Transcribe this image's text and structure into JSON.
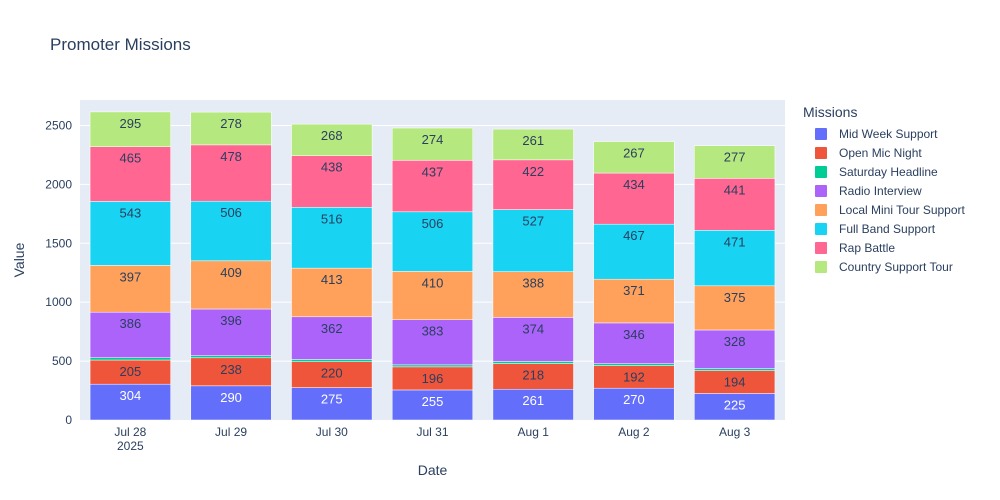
{
  "chart_data": {
    "type": "bar",
    "stacked": true,
    "title": "Promoter Missions",
    "xlabel": "Date",
    "ylabel": "Value",
    "categories": [
      "Jul 28",
      "Jul 29",
      "Jul 30",
      "Jul 31",
      "Aug 1",
      "Aug 2",
      "Aug 3"
    ],
    "x_year_label": "2025",
    "ylim": [
      0,
      2716
    ],
    "yticks": [
      0,
      500,
      1000,
      1500,
      2000,
      2500
    ],
    "grid": true,
    "legend_title": "Missions",
    "legend_position": "right",
    "series": [
      {
        "name": "Mid Week Support",
        "color": "#636efa",
        "label_color": "#ffffff",
        "values": [
          304,
          290,
          275,
          255,
          261,
          270,
          225
        ]
      },
      {
        "name": "Open Mic Night",
        "color": "#ef553b",
        "label_color": "#2a3f5f",
        "values": [
          205,
          238,
          220,
          196,
          218,
          192,
          194
        ]
      },
      {
        "name": "Saturday Headline",
        "color": "#00cc96",
        "label_color": "#2a3f5f",
        "values": [
          20,
          18,
          19,
          17,
          18,
          16,
          17
        ],
        "labels_shown": false
      },
      {
        "name": "Radio Interview",
        "color": "#ab63fa",
        "label_color": "#2a3f5f",
        "values": [
          386,
          396,
          362,
          383,
          374,
          346,
          328
        ]
      },
      {
        "name": "Local Mini Tour Support",
        "color": "#ffa15a",
        "label_color": "#2a3f5f",
        "values": [
          397,
          409,
          413,
          410,
          388,
          371,
          375
        ]
      },
      {
        "name": "Full Band Support",
        "color": "#19d3f3",
        "label_color": "#2a3f5f",
        "values": [
          543,
          506,
          516,
          506,
          527,
          467,
          471
        ]
      },
      {
        "name": "Rap Battle",
        "color": "#ff6692",
        "label_color": "#2a3f5f",
        "values": [
          465,
          478,
          438,
          437,
          422,
          434,
          441
        ]
      },
      {
        "name": "Country Support Tour",
        "color": "#b6e880",
        "label_color": "#2a3f5f",
        "values": [
          295,
          278,
          268,
          274,
          261,
          267,
          277
        ]
      }
    ]
  }
}
